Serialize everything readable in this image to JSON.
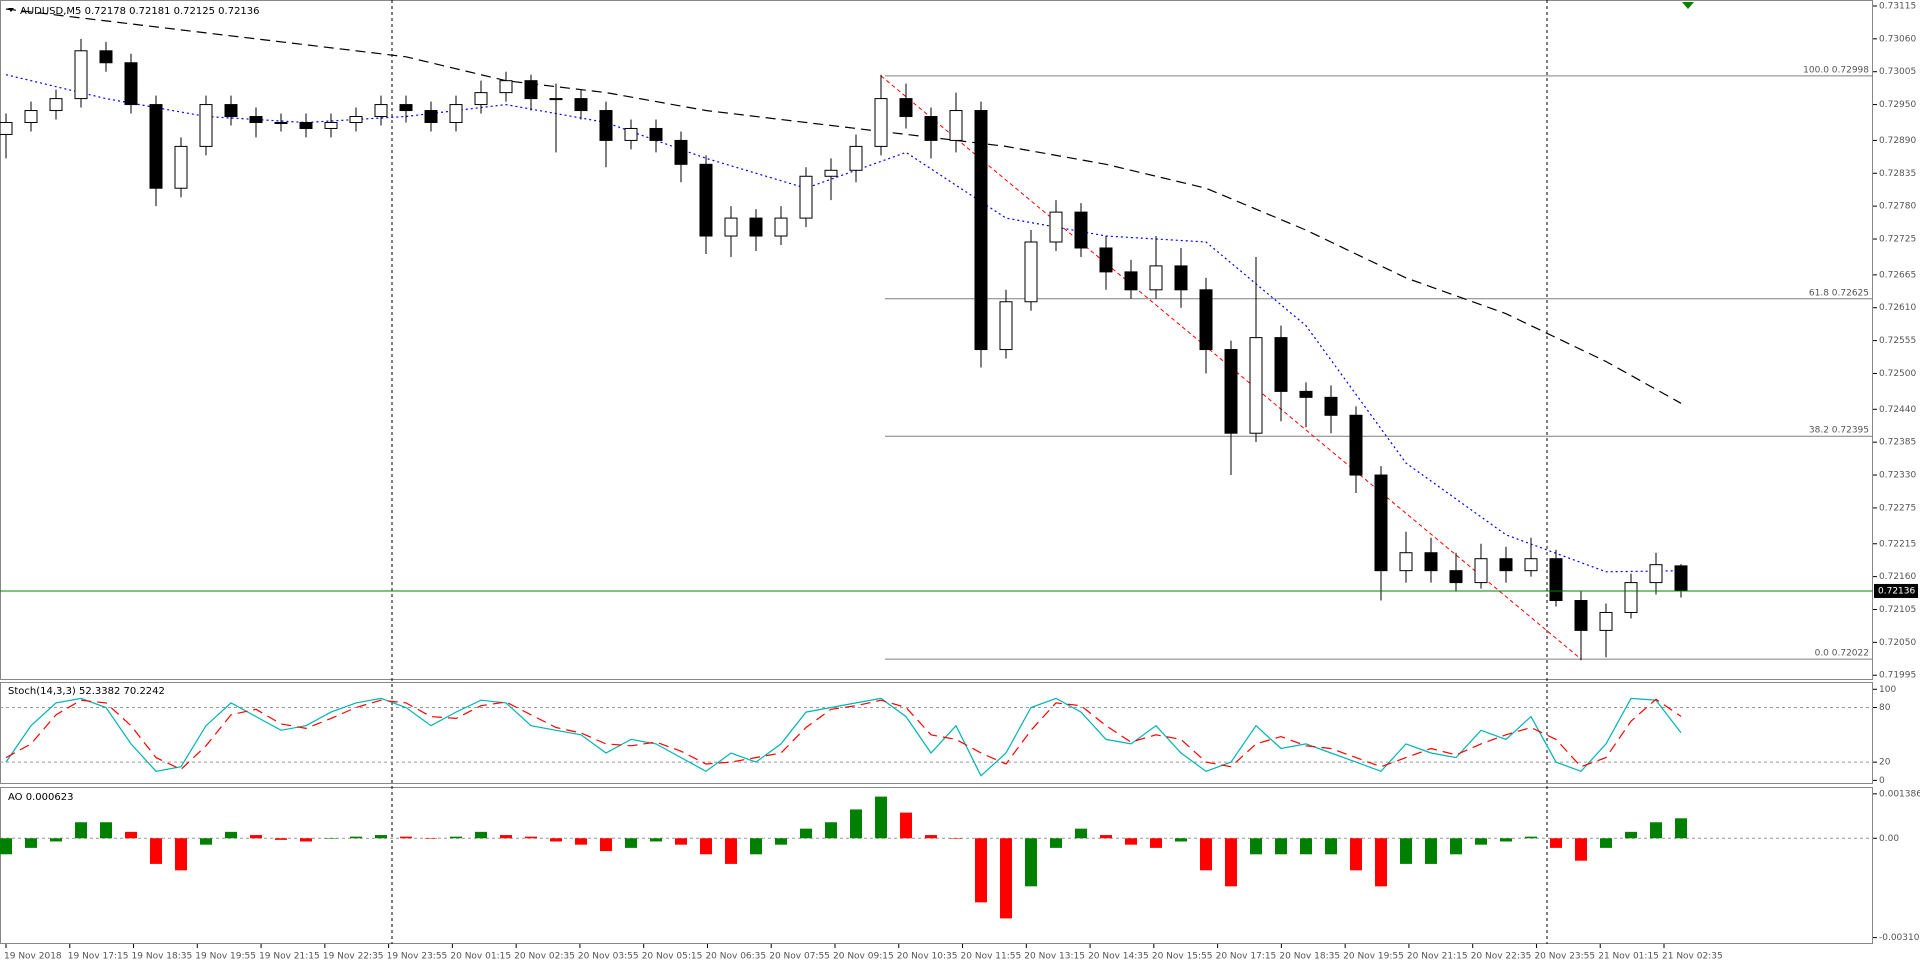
{
  "chart_data": [
    {
      "type": "candlestick",
      "title": "AUDUSD,M5  0.72178 0.72181 0.72125 0.72136",
      "open": [
        0.729,
        0.7292,
        0.7294,
        0.7296,
        0.7304,
        0.7302,
        0.7295,
        0.7281,
        0.7288,
        0.7295,
        0.7293,
        0.7292,
        0.7292,
        0.7291,
        0.7292,
        0.7293,
        0.7295,
        0.7294,
        0.7292,
        0.7295,
        0.7297,
        0.7299,
        0.7296,
        0.7296,
        0.7294,
        0.7289,
        0.7291,
        0.7289,
        0.7285,
        0.7273,
        0.7276,
        0.7273,
        0.7276,
        0.7283,
        0.7284,
        0.7288,
        0.7296,
        0.7293,
        0.7289,
        0.7294,
        0.7254,
        0.7262,
        0.7272,
        0.7277,
        0.7271,
        0.7267,
        0.7264,
        0.7268,
        0.7264,
        0.7254,
        0.724,
        0.7256,
        0.7247,
        0.7246,
        0.7243,
        0.7233,
        0.7217,
        0.722,
        0.7217,
        0.7215,
        0.7219,
        0.7217,
        0.7219,
        0.7212,
        0.7207,
        0.721,
        0.7215,
        0.72178
      ],
      "high": [
        0.72935,
        0.72955,
        0.72975,
        0.7306,
        0.73055,
        0.73035,
        0.72965,
        0.72895,
        0.72965,
        0.72965,
        0.72945,
        0.72935,
        0.72935,
        0.72935,
        0.72945,
        0.72965,
        0.72965,
        0.72955,
        0.72965,
        0.7299,
        0.73005,
        0.73,
        0.72985,
        0.72975,
        0.72955,
        0.72925,
        0.72925,
        0.72905,
        0.72865,
        0.7278,
        0.72775,
        0.7278,
        0.72845,
        0.7286,
        0.729,
        0.73,
        0.72985,
        0.72945,
        0.7297,
        0.72955,
        0.7264,
        0.7274,
        0.7279,
        0.72785,
        0.7273,
        0.7269,
        0.7273,
        0.7271,
        0.7266,
        0.72555,
        0.72695,
        0.7258,
        0.72485,
        0.7248,
        0.72445,
        0.72345,
        0.72235,
        0.72225,
        0.722,
        0.72215,
        0.7221,
        0.72225,
        0.72205,
        0.72135,
        0.72115,
        0.72165,
        0.722,
        0.72181
      ],
      "low": [
        0.7286,
        0.72905,
        0.72925,
        0.72945,
        0.73005,
        0.72935,
        0.7278,
        0.72795,
        0.72865,
        0.72915,
        0.72895,
        0.72905,
        0.72895,
        0.72895,
        0.72905,
        0.72915,
        0.7292,
        0.72905,
        0.72905,
        0.72935,
        0.72955,
        0.7294,
        0.7287,
        0.72925,
        0.72845,
        0.72875,
        0.7287,
        0.7282,
        0.727,
        0.72695,
        0.72705,
        0.72715,
        0.72745,
        0.7279,
        0.7282,
        0.72865,
        0.7291,
        0.7286,
        0.7287,
        0.7251,
        0.72525,
        0.72605,
        0.72705,
        0.72695,
        0.7264,
        0.72625,
        0.72625,
        0.7261,
        0.725,
        0.7233,
        0.72385,
        0.7242,
        0.7241,
        0.724,
        0.723,
        0.7212,
        0.7215,
        0.7215,
        0.72135,
        0.7214,
        0.7215,
        0.7216,
        0.7211,
        0.7202,
        0.72025,
        0.7209,
        0.7213,
        0.72125
      ],
      "close": [
        0.7292,
        0.7294,
        0.7296,
        0.7304,
        0.7302,
        0.7295,
        0.7281,
        0.7288,
        0.7295,
        0.7293,
        0.7292,
        0.7292,
        0.7291,
        0.7292,
        0.7293,
        0.7295,
        0.7294,
        0.7292,
        0.7295,
        0.7297,
        0.7299,
        0.7296,
        0.7296,
        0.7294,
        0.7289,
        0.7291,
        0.7289,
        0.7285,
        0.7273,
        0.7276,
        0.7273,
        0.7276,
        0.7283,
        0.7284,
        0.7288,
        0.7296,
        0.7293,
        0.7289,
        0.7294,
        0.7254,
        0.7262,
        0.7272,
        0.7277,
        0.7271,
        0.7267,
        0.7264,
        0.7268,
        0.7264,
        0.7254,
        0.724,
        0.7256,
        0.7247,
        0.7246,
        0.7243,
        0.7233,
        0.7217,
        0.722,
        0.7217,
        0.7215,
        0.7219,
        0.7217,
        0.7219,
        0.7212,
        0.7207,
        0.721,
        0.7215,
        0.7218,
        0.72136
      ],
      "up_color": "#ffffff",
      "down_color": "#000000",
      "overlays": [
        {
          "style": "dotted",
          "color": "#0000ff",
          "x": [
            0,
            4,
            8,
            12,
            16,
            20,
            24,
            28,
            32,
            36,
            40,
            44,
            48,
            52,
            56,
            60,
            64,
            67
          ],
          "values": [
            0.73,
            0.7296,
            0.7293,
            0.7292,
            0.7293,
            0.7295,
            0.7292,
            0.7286,
            0.7281,
            0.7287,
            0.7276,
            0.7273,
            0.7272,
            0.7258,
            0.7235,
            0.7223,
            0.72168,
            0.7217
          ]
        },
        {
          "style": "dashed",
          "color": "#000000",
          "x": [
            0,
            4,
            8,
            12,
            16,
            20,
            24,
            28,
            32,
            36,
            40,
            44,
            48,
            52,
            56,
            60,
            64,
            67
          ],
          "values": [
            0.7311,
            0.7309,
            0.7307,
            0.7305,
            0.7303,
            0.7299,
            0.7297,
            0.7294,
            0.7292,
            0.729,
            0.7288,
            0.7285,
            0.7281,
            0.7274,
            0.7266,
            0.726,
            0.7252,
            0.7245
          ]
        }
      ],
      "trendline": {
        "color": "#ff0000",
        "x": [
          35,
          63
        ],
        "values": [
          0.72998,
          0.72022
        ]
      },
      "fib_levels": [
        {
          "label": "100.0 0.72998",
          "value": 0.72998
        },
        {
          "label": "61.8 0.72625",
          "value": 0.72625
        },
        {
          "label": "38.2 0.72395",
          "value": 0.72395
        },
        {
          "label": "0.0 0.72022",
          "value": 0.72022
        }
      ],
      "last_price": 0.72136,
      "price_line_color": "#008000",
      "ylim": [
        0.71987,
        0.73125
      ],
      "yticks": [
        0.73115,
        {
          "value": 0.7306,
          "label": "0.73060"
        },
        0.73005,
        {
          "value": 0.7295,
          "label": "0.72950"
        },
        {
          "value": 0.7289,
          "label": "0.72890"
        },
        0.72835,
        {
          "value": 0.7278,
          "label": "0.72780"
        },
        0.72725,
        0.72665,
        {
          "value": 0.7261,
          "label": "0.72610"
        },
        0.72555,
        {
          "value": 0.725,
          "label": "0.72500"
        },
        {
          "value": 0.7244,
          "label": "0.72440"
        },
        0.72385,
        {
          "value": 0.7233,
          "label": "0.72330"
        },
        0.72275,
        0.72215,
        {
          "value": 0.7216,
          "label": "0.72160"
        },
        0.72105,
        {
          "value": 0.7205,
          "label": "0.72050"
        },
        0.71995
      ],
      "xtick_labels": [
        "19 Nov 2018",
        "19 Nov 17:15",
        "19 Nov 18:35",
        "19 Nov 19:55",
        "19 Nov 21:15",
        "19 Nov 22:35",
        "19 Nov 23:55",
        "20 Nov 01:15",
        "20 Nov 02:35",
        "20 Nov 03:55",
        "20 Nov 05:15",
        "20 Nov 06:35",
        "20 Nov 07:55",
        "20 Nov 09:15",
        "20 Nov 10:35",
        "20 Nov 11:55",
        "20 Nov 13:15",
        "20 Nov 14:35",
        "20 Nov 15:55",
        "20 Nov 17:15",
        "20 Nov 18:35",
        "20 Nov 19:55",
        "20 Nov 21:15",
        "20 Nov 22:35",
        "20 Nov 23:55",
        "21 Nov 01:15",
        "21 Nov 02:35"
      ]
    },
    {
      "type": "line",
      "title": "Stoch(14,3,3) 52.3382 70.2242",
      "ylim": [
        -4,
        108
      ],
      "yticks": [
        100,
        80,
        20,
        0
      ],
      "levels": [
        80,
        20
      ],
      "series": [
        {
          "color": "#00b4b4",
          "style": "solid",
          "values": [
            20,
            60,
            85,
            90,
            80,
            40,
            10,
            15,
            60,
            85,
            70,
            55,
            60,
            75,
            85,
            90,
            80,
            60,
            75,
            88,
            85,
            60,
            55,
            50,
            30,
            45,
            40,
            25,
            10,
            30,
            20,
            40,
            75,
            80,
            85,
            90,
            70,
            30,
            60,
            5,
            30,
            80,
            90,
            75,
            45,
            40,
            60,
            30,
            10,
            20,
            60,
            35,
            40,
            30,
            20,
            10,
            40,
            30,
            25,
            55,
            45,
            70,
            20,
            10,
            40,
            90,
            88,
            52.3382
          ]
        },
        {
          "color": "#ff0000",
          "style": "dashed",
          "values": [
            25,
            40,
            72,
            88,
            85,
            60,
            25,
            12,
            38,
            72,
            78,
            62,
            57,
            68,
            80,
            88,
            85,
            70,
            68,
            82,
            86,
            72,
            58,
            52,
            40,
            38,
            42,
            32,
            18,
            20,
            25,
            30,
            58,
            78,
            82,
            88,
            80,
            50,
            45,
            30,
            18,
            55,
            85,
            82,
            60,
            42,
            50,
            45,
            20,
            15,
            40,
            48,
            38,
            35,
            25,
            15,
            25,
            35,
            28,
            40,
            50,
            58,
            45,
            15,
            25,
            65,
            89,
            70.2242
          ]
        }
      ]
    },
    {
      "type": "bar",
      "title": "AO 0.000623",
      "ylim": [
        -0.0033,
        0.0016
      ],
      "yticks": [
        0.001386,
        {
          "value": 0,
          "label": "0.00"
        },
        -0.003101
      ],
      "up_color": "#008000",
      "down_color": "#ff0000",
      "values": [
        -0.0005,
        -0.0003,
        -0.0001,
        0.0005,
        0.0005,
        0.0002,
        -0.0008,
        -0.001,
        -0.0002,
        0.0002,
        0.0001,
        -5e-05,
        -0.0001,
        0,
        5e-05,
        0.0001,
        5e-05,
        0,
        5e-05,
        0.0002,
        0.0001,
        5e-05,
        -0.0001,
        -0.0002,
        -0.0004,
        -0.0003,
        -0.0001,
        -0.0002,
        -0.0005,
        -0.0008,
        -0.0005,
        -0.0002,
        0.0003,
        0.0005,
        0.0009,
        0.0013,
        0.0008,
        0.0001,
        0,
        -0.002,
        -0.0025,
        -0.0015,
        -0.0003,
        0.0003,
        0.0001,
        -0.0002,
        -0.0003,
        -0.0001,
        -0.001,
        -0.0015,
        -0.0005,
        -0.0005,
        -0.0005,
        -0.0005,
        -0.001,
        -0.0015,
        -0.0008,
        -0.0008,
        -0.0005,
        -0.0002,
        -0.0001,
        5e-05,
        -0.0003,
        -0.0007,
        -0.0003,
        0.0002,
        0.0005,
        0.000623
      ]
    }
  ]
}
